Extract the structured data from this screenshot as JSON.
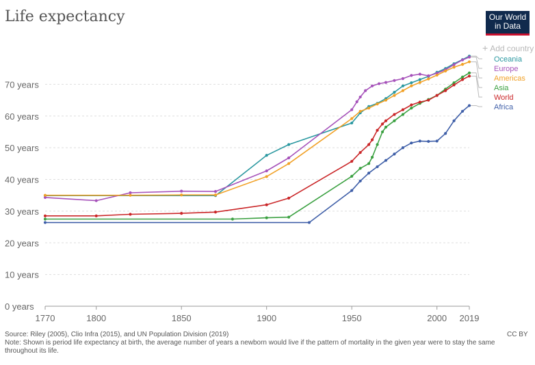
{
  "header": {
    "title": "Life expectancy"
  },
  "logo": {
    "line1": "Our World",
    "line2": "in Data"
  },
  "controls": {
    "add_country": "Add country"
  },
  "footer": {
    "source": "Source: Riley (2005), Clio Infra (2015), and UN Population Division (2019)",
    "note": "Note: Shown is period life expectancy at birth, the average number of years a newborn would live if the pattern of mortality in the given year were to stay the same throughout its life.",
    "license": "CC BY"
  },
  "chart_data": {
    "type": "line",
    "title": "Life expectancy",
    "xlabel": "",
    "ylabel": "",
    "xlim": [
      1770,
      2019
    ],
    "ylim": [
      0,
      80
    ],
    "x_ticks": [
      1770,
      1800,
      1850,
      1900,
      1950,
      2000,
      2019
    ],
    "y_ticks": [
      0,
      10,
      20,
      30,
      40,
      50,
      60,
      70
    ],
    "y_tick_labels": [
      "0 years",
      "10 years",
      "20 years",
      "30 years",
      "40 years",
      "50 years",
      "60 years",
      "70 years"
    ],
    "grid": "horizontal-dashed",
    "legend": "right",
    "series": [
      {
        "name": "Oceania",
        "color": "#2a98a0",
        "points": [
          [
            1770,
            34.9
          ],
          [
            1870,
            34.9
          ],
          [
            1900,
            47.6
          ],
          [
            1913,
            51.0
          ],
          [
            1950,
            57.8
          ],
          [
            1955,
            61.0
          ],
          [
            1960,
            63.0
          ],
          [
            1965,
            64.0
          ],
          [
            1970,
            65.5
          ],
          [
            1975,
            67.5
          ],
          [
            1980,
            69.5
          ],
          [
            1985,
            70.5
          ],
          [
            1990,
            71.5
          ],
          [
            1995,
            72.5
          ],
          [
            2000,
            73.8
          ],
          [
            2005,
            75.0
          ],
          [
            2010,
            76.5
          ],
          [
            2015,
            77.8
          ],
          [
            2019,
            78.9
          ]
        ]
      },
      {
        "name": "Europe",
        "color": "#a652ba",
        "points": [
          [
            1770,
            34.3
          ],
          [
            1800,
            33.3
          ],
          [
            1820,
            35.8
          ],
          [
            1850,
            36.3
          ],
          [
            1870,
            36.2
          ],
          [
            1900,
            42.7
          ],
          [
            1913,
            46.8
          ],
          [
            1950,
            62.0
          ],
          [
            1953,
            64.5
          ],
          [
            1955,
            66.0
          ],
          [
            1958,
            68.0
          ],
          [
            1962,
            69.5
          ],
          [
            1966,
            70.2
          ],
          [
            1970,
            70.6
          ],
          [
            1975,
            71.2
          ],
          [
            1980,
            71.8
          ],
          [
            1985,
            72.8
          ],
          [
            1990,
            73.2
          ],
          [
            1995,
            72.7
          ],
          [
            2000,
            73.5
          ],
          [
            2005,
            74.6
          ],
          [
            2010,
            76.2
          ],
          [
            2015,
            77.7
          ],
          [
            2019,
            78.6
          ]
        ]
      },
      {
        "name": "Americas",
        "color": "#f1a127",
        "points": [
          [
            1770,
            35.0
          ],
          [
            1820,
            35.0
          ],
          [
            1850,
            35.1
          ],
          [
            1870,
            35.1
          ],
          [
            1900,
            40.9
          ],
          [
            1913,
            45.0
          ],
          [
            1950,
            59.2
          ],
          [
            1955,
            61.5
          ],
          [
            1960,
            62.5
          ],
          [
            1965,
            63.8
          ],
          [
            1970,
            65.0
          ],
          [
            1975,
            66.5
          ],
          [
            1980,
            68.0
          ],
          [
            1985,
            69.5
          ],
          [
            1990,
            70.6
          ],
          [
            1995,
            71.7
          ],
          [
            2000,
            72.9
          ],
          [
            2005,
            74.2
          ],
          [
            2010,
            75.4
          ],
          [
            2015,
            76.3
          ],
          [
            2019,
            77.1
          ]
        ]
      },
      {
        "name": "Asia",
        "color": "#3aa040",
        "points": [
          [
            1770,
            27.5
          ],
          [
            1880,
            27.5
          ],
          [
            1900,
            27.9
          ],
          [
            1913,
            28.1
          ],
          [
            1950,
            41.0
          ],
          [
            1955,
            43.5
          ],
          [
            1960,
            45.0
          ],
          [
            1962,
            47.0
          ],
          [
            1965,
            51.0
          ],
          [
            1968,
            55.0
          ],
          [
            1970,
            56.5
          ],
          [
            1975,
            58.5
          ],
          [
            1980,
            60.5
          ],
          [
            1985,
            62.5
          ],
          [
            1990,
            64.0
          ],
          [
            1995,
            65.2
          ],
          [
            2000,
            66.5
          ],
          [
            2005,
            68.5
          ],
          [
            2010,
            70.5
          ],
          [
            2015,
            72.3
          ],
          [
            2019,
            73.6
          ]
        ]
      },
      {
        "name": "World",
        "color": "#ca2628",
        "points": [
          [
            1770,
            28.5
          ],
          [
            1800,
            28.5
          ],
          [
            1820,
            29.0
          ],
          [
            1850,
            29.3
          ],
          [
            1870,
            29.7
          ],
          [
            1900,
            32.0
          ],
          [
            1913,
            34.1
          ],
          [
            1950,
            45.7
          ],
          [
            1955,
            48.5
          ],
          [
            1960,
            51.0
          ],
          [
            1962,
            52.5
          ],
          [
            1965,
            55.5
          ],
          [
            1968,
            57.5
          ],
          [
            1970,
            58.5
          ],
          [
            1975,
            60.5
          ],
          [
            1980,
            62.0
          ],
          [
            1985,
            63.5
          ],
          [
            1990,
            64.4
          ],
          [
            1995,
            65.0
          ],
          [
            2000,
            66.5
          ],
          [
            2005,
            68.0
          ],
          [
            2010,
            69.8
          ],
          [
            2015,
            71.5
          ],
          [
            2019,
            72.6
          ]
        ]
      },
      {
        "name": "Africa",
        "color": "#3f5fa8",
        "points": [
          [
            1770,
            26.4
          ],
          [
            1925,
            26.4
          ],
          [
            1950,
            36.5
          ],
          [
            1955,
            39.5
          ],
          [
            1960,
            42.0
          ],
          [
            1965,
            44.0
          ],
          [
            1970,
            46.0
          ],
          [
            1975,
            48.0
          ],
          [
            1980,
            50.0
          ],
          [
            1985,
            51.5
          ],
          [
            1990,
            52.1
          ],
          [
            1995,
            52.0
          ],
          [
            2000,
            52.1
          ],
          [
            2005,
            54.5
          ],
          [
            2010,
            58.5
          ],
          [
            2015,
            61.5
          ],
          [
            2019,
            63.3
          ]
        ]
      }
    ],
    "legend_order": [
      "Oceania",
      "Europe",
      "Americas",
      "Asia",
      "World",
      "Africa"
    ]
  }
}
